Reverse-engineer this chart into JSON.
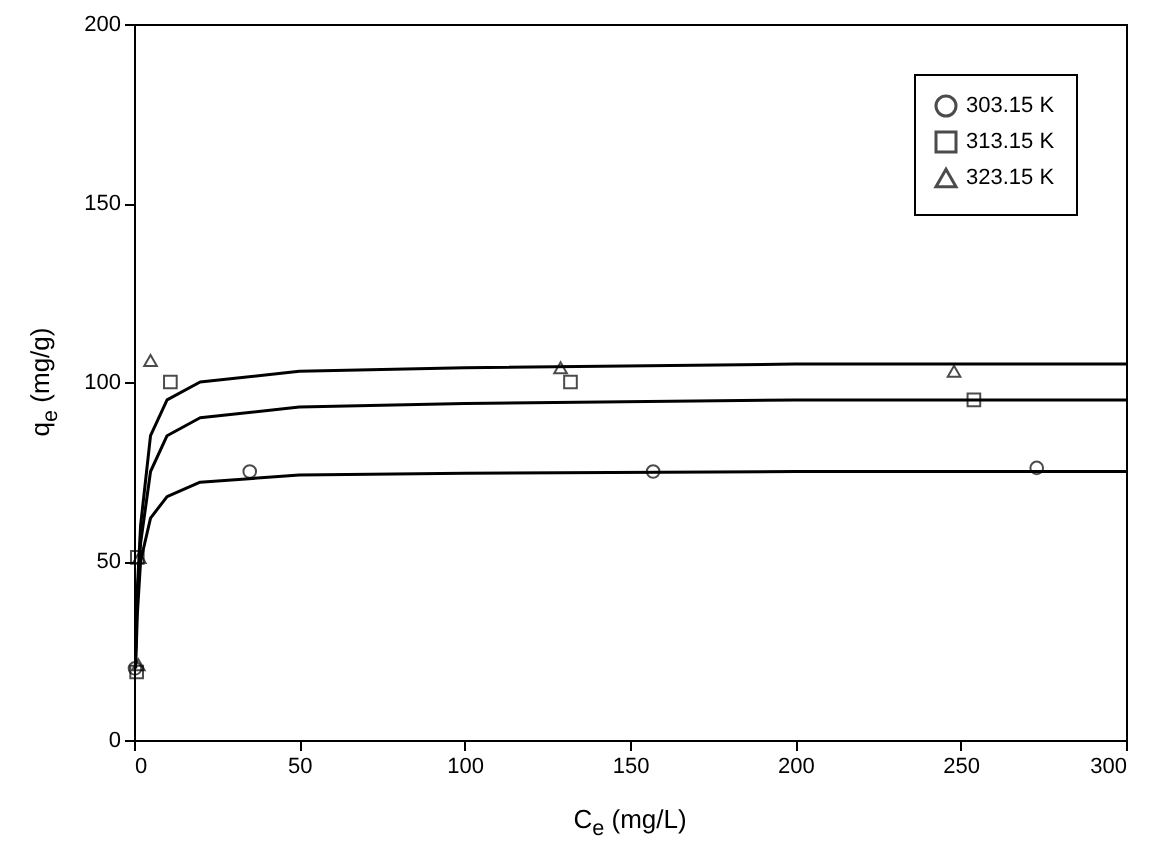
{
  "chart_data": {
    "type": "scatter",
    "xlabel": "C$_{e}$ (mg/L)",
    "ylabel": "q$_{e}$ (mg/g)",
    "xlim": [
      0,
      300
    ],
    "ylim": [
      0,
      200
    ],
    "xticks": [
      0,
      50,
      100,
      150,
      200,
      250,
      300
    ],
    "yticks": [
      0,
      50,
      100,
      150,
      200
    ],
    "grid": false,
    "legend": "top right",
    "series": [
      {
        "name": "303.15 K",
        "color": "#000000",
        "marker": "circle",
        "x": [
          0.3,
          35,
          157,
          273
        ],
        "values": [
          20,
          75,
          75,
          76
        ]
      },
      {
        "name": "313.15 K",
        "color": "#000000",
        "marker": "square",
        "x": [
          0.8,
          1,
          11,
          132,
          254
        ],
        "values": [
          19,
          51,
          100,
          100,
          95
        ]
      },
      {
        "name": "323.15 K",
        "color": "#000000",
        "marker": "triangle",
        "x": [
          1.3,
          1.6,
          5,
          129,
          248
        ],
        "values": [
          21,
          51,
          106,
          104,
          103
        ]
      },
      {
        "type": "line",
        "color": "#000000",
        "marker": "none",
        "x": [
          0.5,
          1,
          2,
          5,
          10,
          20,
          50,
          100,
          200,
          300
        ],
        "values": [
          20,
          35,
          50,
          62,
          68,
          72,
          74,
          74.5,
          75,
          75
        ]
      },
      {
        "type": "line",
        "color": "#000000",
        "marker": "none",
        "x": [
          0.5,
          1,
          2,
          5,
          10,
          20,
          50,
          100,
          200,
          300
        ],
        "values": [
          25,
          40,
          55,
          75,
          85,
          90,
          93,
          94,
          95,
          95
        ]
      },
      {
        "type": "line",
        "color": "#000000",
        "marker": "none",
        "x": [
          0.5,
          1,
          2,
          5,
          10,
          20,
          50,
          100,
          200,
          300
        ],
        "values": [
          25,
          42,
          60,
          85,
          95,
          100,
          103,
          104,
          105,
          105
        ]
      }
    ]
  }
}
